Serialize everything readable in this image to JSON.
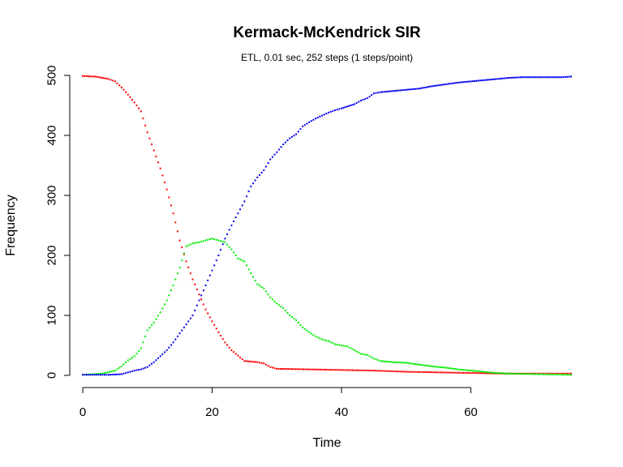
{
  "chart_data": {
    "type": "scatter",
    "title": "Kermack-McKendrick SIR",
    "subtitle": "ETL, 0.01 sec, 252 steps (1 steps/point)",
    "xlabel": "Time",
    "ylabel": "Frequency",
    "xlim": [
      0,
      75.5
    ],
    "ylim": [
      0,
      500
    ],
    "x_ticks": [
      0,
      20,
      40,
      60
    ],
    "y_ticks": [
      0,
      100,
      200,
      300,
      400,
      500
    ],
    "grid": false,
    "legend": "none",
    "series": [
      {
        "color": "#ff0000",
        "points": [
          [
            0,
            499
          ],
          [
            2,
            498
          ],
          [
            4,
            494
          ],
          [
            5,
            490
          ],
          [
            6,
            480
          ],
          [
            7,
            468
          ],
          [
            8,
            455
          ],
          [
            9,
            440
          ],
          [
            10,
            405
          ],
          [
            11,
            375
          ],
          [
            12,
            345
          ],
          [
            13,
            310
          ],
          [
            14,
            270
          ],
          [
            15,
            225
          ],
          [
            16,
            190
          ],
          [
            17,
            160
          ],
          [
            18,
            135
          ],
          [
            19,
            110
          ],
          [
            20,
            90
          ],
          [
            21,
            72
          ],
          [
            22,
            55
          ],
          [
            23,
            42
          ],
          [
            24,
            33
          ],
          [
            25,
            24
          ],
          [
            27,
            22
          ],
          [
            28,
            20
          ],
          [
            29,
            14
          ],
          [
            30,
            11
          ],
          [
            35,
            10
          ],
          [
            40,
            9
          ],
          [
            45,
            8
          ],
          [
            50,
            6
          ],
          [
            55,
            5
          ],
          [
            60,
            4
          ],
          [
            65,
            3
          ],
          [
            70,
            3
          ],
          [
            75.5,
            3
          ]
        ]
      },
      {
        "color": "#00ee00",
        "points": [
          [
            0,
            1
          ],
          [
            3,
            3
          ],
          [
            5,
            8
          ],
          [
            6,
            15
          ],
          [
            7,
            25
          ],
          [
            8,
            32
          ],
          [
            9,
            45
          ],
          [
            10,
            75
          ],
          [
            11,
            88
          ],
          [
            12,
            105
          ],
          [
            13,
            125
          ],
          [
            14,
            150
          ],
          [
            15,
            180
          ],
          [
            16,
            215
          ],
          [
            17,
            220
          ],
          [
            18,
            222
          ],
          [
            19,
            225
          ],
          [
            20,
            228
          ],
          [
            21,
            225
          ],
          [
            22,
            222
          ],
          [
            23,
            210
          ],
          [
            24,
            195
          ],
          [
            25,
            190
          ],
          [
            26,
            170
          ],
          [
            27,
            152
          ],
          [
            28,
            145
          ],
          [
            29,
            130
          ],
          [
            30,
            120
          ],
          [
            31,
            112
          ],
          [
            32,
            100
          ],
          [
            33,
            92
          ],
          [
            34,
            80
          ],
          [
            35,
            72
          ],
          [
            36,
            65
          ],
          [
            37,
            60
          ],
          [
            38,
            57
          ],
          [
            39,
            52
          ],
          [
            40,
            50
          ],
          [
            41,
            48
          ],
          [
            42,
            42
          ],
          [
            43,
            36
          ],
          [
            44,
            34
          ],
          [
            45,
            28
          ],
          [
            46,
            24
          ],
          [
            48,
            22
          ],
          [
            50,
            21
          ],
          [
            52,
            18
          ],
          [
            54,
            15
          ],
          [
            56,
            13
          ],
          [
            58,
            10
          ],
          [
            60,
            8
          ],
          [
            62,
            6
          ],
          [
            64,
            4
          ],
          [
            66,
            3
          ],
          [
            70,
            2
          ],
          [
            75.5,
            1
          ]
        ]
      },
      {
        "color": "#0000ee",
        "points": [
          [
            0,
            1
          ],
          [
            4,
            1
          ],
          [
            6,
            2
          ],
          [
            7,
            5
          ],
          [
            8,
            8
          ],
          [
            9,
            10
          ],
          [
            10,
            14
          ],
          [
            11,
            22
          ],
          [
            12,
            32
          ],
          [
            13,
            42
          ],
          [
            14,
            55
          ],
          [
            15,
            70
          ],
          [
            16,
            85
          ],
          [
            17,
            100
          ],
          [
            18,
            125
          ],
          [
            19,
            150
          ],
          [
            20,
            175
          ],
          [
            21,
            200
          ],
          [
            22,
            228
          ],
          [
            23,
            250
          ],
          [
            24,
            270
          ],
          [
            25,
            290
          ],
          [
            26,
            315
          ],
          [
            27,
            330
          ],
          [
            28,
            342
          ],
          [
            29,
            360
          ],
          [
            30,
            372
          ],
          [
            31,
            385
          ],
          [
            32,
            395
          ],
          [
            33,
            402
          ],
          [
            34,
            415
          ],
          [
            35,
            422
          ],
          [
            36,
            428
          ],
          [
            37,
            433
          ],
          [
            38,
            438
          ],
          [
            39,
            442
          ],
          [
            40,
            445
          ],
          [
            42,
            452
          ],
          [
            43,
            458
          ],
          [
            44,
            462
          ],
          [
            45,
            470
          ],
          [
            46,
            472
          ],
          [
            48,
            474
          ],
          [
            50,
            476
          ],
          [
            52,
            478
          ],
          [
            54,
            482
          ],
          [
            56,
            485
          ],
          [
            58,
            488
          ],
          [
            60,
            490
          ],
          [
            62,
            492
          ],
          [
            64,
            494
          ],
          [
            66,
            496
          ],
          [
            68,
            497
          ],
          [
            70,
            497
          ],
          [
            72,
            497
          ],
          [
            74,
            497
          ],
          [
            75.5,
            498
          ]
        ]
      }
    ]
  }
}
